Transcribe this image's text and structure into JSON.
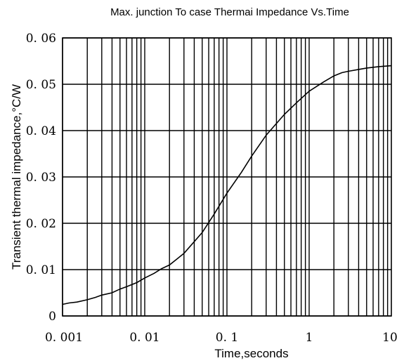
{
  "chart_data": {
    "type": "line",
    "title": "Max. junction To case Thermai Impedance Vs.Time",
    "xlabel": "Time,seconds",
    "ylabel": "Transient thermal impedance,°C/W",
    "x_scale": "log",
    "xlim": [
      0.001,
      10
    ],
    "ylim": [
      0,
      0.06
    ],
    "grid": true,
    "x_ticks": [
      0.001,
      0.01,
      0.1,
      1,
      10
    ],
    "x_tick_labels": [
      "0. 001",
      "0. 01",
      "0. 1",
      "1",
      "10"
    ],
    "y_ticks": [
      0,
      0.01,
      0.02,
      0.03,
      0.04,
      0.05,
      0.06
    ],
    "y_tick_labels": [
      "0",
      "0. 01",
      "0. 02",
      "0. 03",
      "0. 04",
      "0. 05",
      "0. 06"
    ],
    "series": [
      {
        "x": [
          0.001,
          0.0012,
          0.0015,
          0.002,
          0.0025,
          0.003,
          0.004,
          0.005,
          0.006,
          0.008,
          0.01,
          0.013,
          0.016,
          0.02,
          0.03,
          0.05,
          0.07,
          0.1,
          0.15,
          0.2,
          0.3,
          0.5,
          0.7,
          1,
          1.5,
          2,
          2.5,
          3,
          4,
          5,
          7,
          10
        ],
        "y": [
          0.0025,
          0.0028,
          0.003,
          0.0035,
          0.004,
          0.0045,
          0.005,
          0.0058,
          0.0063,
          0.0072,
          0.0082,
          0.0092,
          0.0102,
          0.011,
          0.0135,
          0.018,
          0.022,
          0.0265,
          0.031,
          0.0345,
          0.039,
          0.0435,
          0.046,
          0.0485,
          0.0505,
          0.0518,
          0.0525,
          0.0528,
          0.0532,
          0.0535,
          0.0538,
          0.054
        ]
      }
    ]
  }
}
